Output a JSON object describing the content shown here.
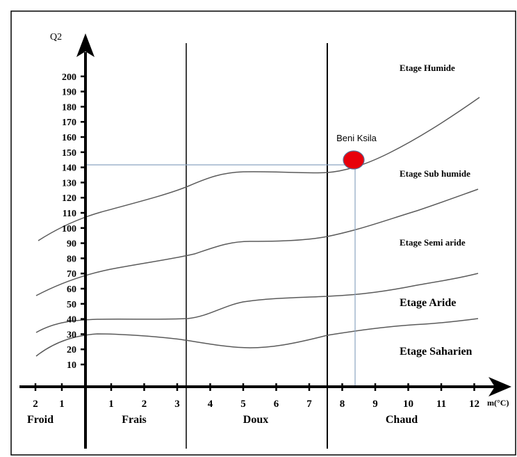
{
  "diagram": {
    "y_axis_label": "Q2",
    "x_axis_label": "m(°C)",
    "y_ticks": [
      "10",
      "20",
      "30",
      "40",
      "50",
      "60",
      "70",
      "80",
      "90",
      "100",
      "110",
      "120",
      "130",
      "140",
      "150",
      "160",
      "170",
      "180",
      "190",
      "200"
    ],
    "x_ticks_left": [
      "2",
      "1"
    ],
    "x_ticks_right": [
      "1",
      "2",
      "3",
      "4",
      "5",
      "6",
      "7",
      "8",
      "9",
      "10",
      "11",
      "12"
    ],
    "winter_zones": [
      "Froid",
      "Frais",
      "Doux",
      "Chaud"
    ],
    "bioclimatic_stages": [
      {
        "label": "Etage Humide"
      },
      {
        "label": "Etage Sub humide"
      },
      {
        "label": "Etage Semi aride"
      },
      {
        "label": "Etage Aride"
      },
      {
        "label": "Etage Saharien"
      }
    ],
    "station": {
      "name": "Beni Ksila",
      "m": 8.3,
      "q2": 145,
      "color": "#e8000b"
    },
    "reference_line_color": "#8aa4c0"
  }
}
